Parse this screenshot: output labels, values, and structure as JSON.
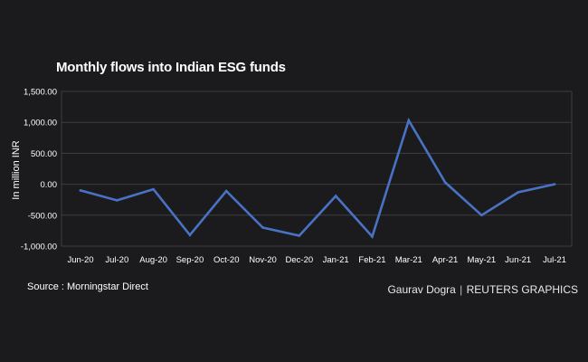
{
  "chart_data": {
    "type": "line",
    "title": "Monthly flows into Indian ESG funds",
    "ylabel": "In million INR",
    "xlabel": "",
    "categories": [
      "Jun-20",
      "Jul-20",
      "Aug-20",
      "Sep-20",
      "Oct-20",
      "Nov-20",
      "Dec-20",
      "Jan-21",
      "Feb-21",
      "Mar-21",
      "Apr-21",
      "May-21",
      "Jun-21",
      "Jul-21"
    ],
    "series": [
      {
        "values": [
          -100,
          -260,
          -80,
          -820,
          -110,
          -700,
          -830,
          -190,
          -845,
          1030,
          30,
          -500,
          -130,
          0
        ]
      }
    ],
    "ylim": [
      -1000,
      1500
    ],
    "yticks": [
      1500,
      1000,
      500,
      0,
      -500,
      -1000
    ],
    "ytick_labels": [
      "1,500.00",
      "1,000.00",
      "500.00",
      "0.00",
      "-500.00",
      "-1,000.00"
    ],
    "grid": true,
    "colors": {
      "line": "#4a72c4",
      "grid": "#3e3e42",
      "background": "#1b1b1d"
    }
  },
  "footer": {
    "source": "Source : Morningstar Direct",
    "author": "Gaurav Dogra",
    "separator": "|",
    "brand": "REUTERS GRAPHICS"
  }
}
